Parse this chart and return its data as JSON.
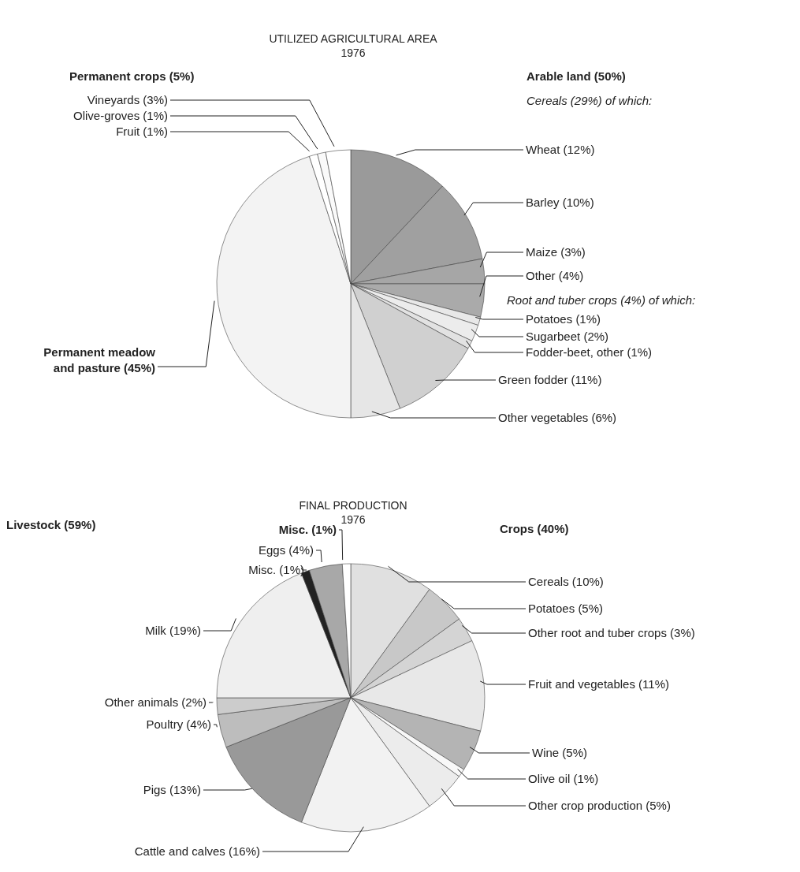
{
  "chart_data": [
    {
      "type": "pie",
      "title": "UTILIZED AGRICULTURAL AREA",
      "subtitle": "1976",
      "categories": [
        "Wheat (12%)",
        "Barley (10%)",
        "Maize (3%)",
        "Other (4%)",
        "Potatoes (1%)",
        "Sugarbeet (2%)",
        "Fodder-beet, other (1%)",
        "Green fodder (11%)",
        "Other vegetables (6%)",
        "Permanent meadow and pasture (45%)",
        "Fruit (1%)",
        "Olive-groves (1%)",
        "Vineyards (3%)"
      ],
      "values": [
        12,
        10,
        3,
        4,
        1,
        2,
        1,
        11,
        6,
        45,
        1,
        1,
        3
      ],
      "colors": [
        "#9a9a9a",
        "#a0a0a0",
        "#a6a6a6",
        "#aaaaaa",
        "#e8e8e8",
        "#ececec",
        "#e2e2e2",
        "#d0d0d0",
        "#e6e6e6",
        "#f3f3f3",
        "#ffffff",
        "#fafafa",
        "#ffffff"
      ],
      "annotations": [
        "Permanent crops (5%)",
        "Arable land (50%)",
        "Cereals (29%) of which:",
        "Root and tuber crops (4%) of which:"
      ]
    },
    {
      "type": "pie",
      "title": "FINAL PRODUCTION",
      "subtitle": "1976",
      "categories": [
        "Cereals (10%)",
        "Potatoes (5%)",
        "Other root and tuber crops (3%)",
        "Fruit and vegetables (11%)",
        "Wine (5%)",
        "Olive oil (1%)",
        "Other crop production (5%)",
        "Cattle and calves (16%)",
        "Pigs (13%)",
        "Poultry (4%)",
        "Other animals (2%)",
        "Milk (19%)",
        "Misc. (1%)",
        "Eggs (4%)",
        "Misc. (1%)"
      ],
      "values": [
        10,
        5,
        3,
        11,
        5,
        1,
        5,
        16,
        13,
        4,
        2,
        19,
        1,
        4,
        1
      ],
      "colors": [
        "#e0e0e0",
        "#c8c8c8",
        "#d4d4d4",
        "#e8e8e8",
        "#b4b4b4",
        "#f8f8f8",
        "#ececec",
        "#f2f2f2",
        "#999999",
        "#bdbdbd",
        "#cccccc",
        "#efefef",
        "#222222",
        "#a8a8a8",
        "#ffffff"
      ],
      "annotations": [
        "Livestock (59%)",
        "Crops (40%)"
      ]
    }
  ]
}
